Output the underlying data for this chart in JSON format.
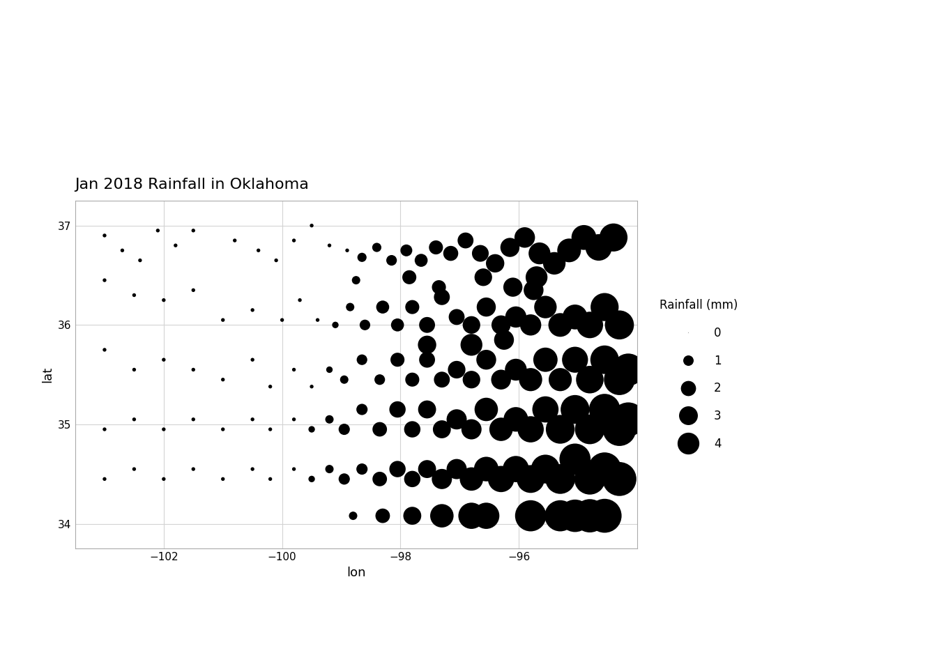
{
  "title": "Jan 2018 Rainfall in Oklahoma",
  "xlabel": "lon",
  "ylabel": "lat",
  "xlim": [
    -103.5,
    -94.0
  ],
  "ylim": [
    33.75,
    37.25
  ],
  "xticks": [
    -102,
    -100,
    -98,
    -96
  ],
  "yticks": [
    34,
    35,
    36,
    37
  ],
  "background_color": "#ffffff",
  "panel_color": "#ffffff",
  "grid_color": "#d3d3d3",
  "point_color": "#000000",
  "legend_title": "Rainfall (mm)",
  "legend_values": [
    0,
    1,
    2,
    3,
    4
  ],
  "title_fontsize": 16,
  "axis_label_fontsize": 13,
  "tick_fontsize": 11,
  "legend_fontsize": 12,
  "size_scale": 300,
  "min_size": 3,
  "stations": [
    {
      "lon": -103.0,
      "lat": 36.9,
      "rain": 0.05
    },
    {
      "lon": -102.7,
      "lat": 36.75,
      "rain": 0.05
    },
    {
      "lon": -102.4,
      "lat": 36.65,
      "rain": 0.05
    },
    {
      "lon": -102.1,
      "lat": 36.95,
      "rain": 0.05
    },
    {
      "lon": -101.8,
      "lat": 36.8,
      "rain": 0.05
    },
    {
      "lon": -101.5,
      "lat": 36.95,
      "rain": 0.05
    },
    {
      "lon": -100.8,
      "lat": 36.85,
      "rain": 0.05
    },
    {
      "lon": -100.4,
      "lat": 36.75,
      "rain": 0.05
    },
    {
      "lon": -100.1,
      "lat": 36.65,
      "rain": 0.05
    },
    {
      "lon": -99.8,
      "lat": 36.85,
      "rain": 0.05
    },
    {
      "lon": -99.5,
      "lat": 37.0,
      "rain": 0.05
    },
    {
      "lon": -99.2,
      "lat": 36.8,
      "rain": 0.05
    },
    {
      "lon": -98.9,
      "lat": 36.75,
      "rain": 0.05
    },
    {
      "lon": -98.65,
      "lat": 36.68,
      "rain": 0.3
    },
    {
      "lon": -98.4,
      "lat": 36.78,
      "rain": 0.3
    },
    {
      "lon": -98.15,
      "lat": 36.65,
      "rain": 0.4
    },
    {
      "lon": -97.9,
      "lat": 36.75,
      "rain": 0.5
    },
    {
      "lon": -97.65,
      "lat": 36.65,
      "rain": 0.6
    },
    {
      "lon": -97.4,
      "lat": 36.78,
      "rain": 0.7
    },
    {
      "lon": -97.15,
      "lat": 36.72,
      "rain": 0.8
    },
    {
      "lon": -96.9,
      "lat": 36.85,
      "rain": 0.9
    },
    {
      "lon": -96.65,
      "lat": 36.72,
      "rain": 1.0
    },
    {
      "lon": -96.4,
      "lat": 36.62,
      "rain": 1.2
    },
    {
      "lon": -96.15,
      "lat": 36.78,
      "rain": 1.3
    },
    {
      "lon": -95.9,
      "lat": 36.88,
      "rain": 1.5
    },
    {
      "lon": -95.65,
      "lat": 36.72,
      "rain": 1.7
    },
    {
      "lon": -95.4,
      "lat": 36.62,
      "rain": 1.8
    },
    {
      "lon": -95.15,
      "lat": 36.75,
      "rain": 2.0
    },
    {
      "lon": -94.9,
      "lat": 36.88,
      "rain": 2.2
    },
    {
      "lon": -94.65,
      "lat": 36.78,
      "rain": 2.5
    },
    {
      "lon": -94.4,
      "lat": 36.88,
      "rain": 2.8
    },
    {
      "lon": -103.0,
      "lat": 36.45,
      "rain": 0.05
    },
    {
      "lon": -102.5,
      "lat": 36.3,
      "rain": 0.05
    },
    {
      "lon": -102.0,
      "lat": 36.25,
      "rain": 0.05
    },
    {
      "lon": -101.5,
      "lat": 36.35,
      "rain": 0.05
    },
    {
      "lon": -101.0,
      "lat": 36.05,
      "rain": 0.05
    },
    {
      "lon": -100.5,
      "lat": 36.15,
      "rain": 0.05
    },
    {
      "lon": -100.0,
      "lat": 36.05,
      "rain": 0.05
    },
    {
      "lon": -99.7,
      "lat": 36.25,
      "rain": 0.05
    },
    {
      "lon": -99.4,
      "lat": 36.05,
      "rain": 0.05
    },
    {
      "lon": -99.1,
      "lat": 36.0,
      "rain": 0.15
    },
    {
      "lon": -98.85,
      "lat": 36.18,
      "rain": 0.25
    },
    {
      "lon": -98.6,
      "lat": 36.0,
      "rain": 0.4
    },
    {
      "lon": -98.3,
      "lat": 36.18,
      "rain": 0.6
    },
    {
      "lon": -98.05,
      "lat": 36.0,
      "rain": 0.6
    },
    {
      "lon": -97.8,
      "lat": 36.18,
      "rain": 0.7
    },
    {
      "lon": -97.55,
      "lat": 36.0,
      "rain": 0.9
    },
    {
      "lon": -97.3,
      "lat": 36.28,
      "rain": 0.9
    },
    {
      "lon": -97.05,
      "lat": 36.08,
      "rain": 0.9
    },
    {
      "lon": -96.8,
      "lat": 36.0,
      "rain": 1.1
    },
    {
      "lon": -96.55,
      "lat": 36.18,
      "rain": 1.3
    },
    {
      "lon": -96.3,
      "lat": 36.0,
      "rain": 1.3
    },
    {
      "lon": -96.05,
      "lat": 36.08,
      "rain": 1.6
    },
    {
      "lon": -95.8,
      "lat": 36.0,
      "rain": 1.6
    },
    {
      "lon": -95.55,
      "lat": 36.18,
      "rain": 1.8
    },
    {
      "lon": -95.3,
      "lat": 36.0,
      "rain": 2.0
    },
    {
      "lon": -95.05,
      "lat": 36.08,
      "rain": 2.2
    },
    {
      "lon": -94.8,
      "lat": 36.0,
      "rain": 2.5
    },
    {
      "lon": -94.55,
      "lat": 36.18,
      "rain": 2.8
    },
    {
      "lon": -94.3,
      "lat": 36.0,
      "rain": 3.0
    },
    {
      "lon": -103.0,
      "lat": 35.75,
      "rain": 0.05
    },
    {
      "lon": -102.5,
      "lat": 35.55,
      "rain": 0.05
    },
    {
      "lon": -102.0,
      "lat": 35.65,
      "rain": 0.05
    },
    {
      "lon": -101.5,
      "lat": 35.55,
      "rain": 0.05
    },
    {
      "lon": -101.0,
      "lat": 35.45,
      "rain": 0.05
    },
    {
      "lon": -100.5,
      "lat": 35.65,
      "rain": 0.05
    },
    {
      "lon": -100.2,
      "lat": 35.38,
      "rain": 0.05
    },
    {
      "lon": -99.8,
      "lat": 35.55,
      "rain": 0.05
    },
    {
      "lon": -99.5,
      "lat": 35.38,
      "rain": 0.05
    },
    {
      "lon": -99.2,
      "lat": 35.55,
      "rain": 0.15
    },
    {
      "lon": -98.95,
      "lat": 35.45,
      "rain": 0.25
    },
    {
      "lon": -98.65,
      "lat": 35.65,
      "rain": 0.4
    },
    {
      "lon": -98.35,
      "lat": 35.45,
      "rain": 0.4
    },
    {
      "lon": -98.05,
      "lat": 35.65,
      "rain": 0.7
    },
    {
      "lon": -97.8,
      "lat": 35.45,
      "rain": 0.7
    },
    {
      "lon": -97.55,
      "lat": 35.65,
      "rain": 0.9
    },
    {
      "lon": -97.3,
      "lat": 35.45,
      "rain": 0.9
    },
    {
      "lon": -97.05,
      "lat": 35.55,
      "rain": 1.1
    },
    {
      "lon": -96.8,
      "lat": 35.45,
      "rain": 1.1
    },
    {
      "lon": -96.55,
      "lat": 35.65,
      "rain": 1.4
    },
    {
      "lon": -96.3,
      "lat": 35.45,
      "rain": 1.4
    },
    {
      "lon": -96.05,
      "lat": 35.55,
      "rain": 1.7
    },
    {
      "lon": -95.8,
      "lat": 35.45,
      "rain": 1.9
    },
    {
      "lon": -95.55,
      "lat": 35.65,
      "rain": 2.1
    },
    {
      "lon": -95.3,
      "lat": 35.45,
      "rain": 1.9
    },
    {
      "lon": -95.05,
      "lat": 35.65,
      "rain": 2.4
    },
    {
      "lon": -94.8,
      "lat": 35.45,
      "rain": 2.7
    },
    {
      "lon": -94.55,
      "lat": 35.65,
      "rain": 2.9
    },
    {
      "lon": -94.3,
      "lat": 35.45,
      "rain": 3.4
    },
    {
      "lon": -94.15,
      "lat": 35.55,
      "rain": 3.7
    },
    {
      "lon": -103.0,
      "lat": 34.95,
      "rain": 0.05
    },
    {
      "lon": -102.5,
      "lat": 35.05,
      "rain": 0.05
    },
    {
      "lon": -102.0,
      "lat": 34.95,
      "rain": 0.05
    },
    {
      "lon": -101.5,
      "lat": 35.05,
      "rain": 0.05
    },
    {
      "lon": -101.0,
      "lat": 34.95,
      "rain": 0.05
    },
    {
      "lon": -100.5,
      "lat": 35.05,
      "rain": 0.05
    },
    {
      "lon": -100.2,
      "lat": 34.95,
      "rain": 0.05
    },
    {
      "lon": -99.8,
      "lat": 35.05,
      "rain": 0.05
    },
    {
      "lon": -99.5,
      "lat": 34.95,
      "rain": 0.15
    },
    {
      "lon": -99.2,
      "lat": 35.05,
      "rain": 0.25
    },
    {
      "lon": -98.95,
      "lat": 34.95,
      "rain": 0.45
    },
    {
      "lon": -98.65,
      "lat": 35.15,
      "rain": 0.45
    },
    {
      "lon": -98.35,
      "lat": 34.95,
      "rain": 0.75
    },
    {
      "lon": -98.05,
      "lat": 35.15,
      "rain": 0.95
    },
    {
      "lon": -97.8,
      "lat": 34.95,
      "rain": 0.95
    },
    {
      "lon": -97.55,
      "lat": 35.15,
      "rain": 1.15
    },
    {
      "lon": -97.3,
      "lat": 34.95,
      "rain": 1.15
    },
    {
      "lon": -97.05,
      "lat": 35.05,
      "rain": 1.45
    },
    {
      "lon": -96.8,
      "lat": 34.95,
      "rain": 1.45
    },
    {
      "lon": -96.55,
      "lat": 35.15,
      "rain": 1.95
    },
    {
      "lon": -96.3,
      "lat": 34.95,
      "rain": 1.95
    },
    {
      "lon": -96.05,
      "lat": 35.05,
      "rain": 2.15
    },
    {
      "lon": -95.8,
      "lat": 34.95,
      "rain": 2.45
    },
    {
      "lon": -95.55,
      "lat": 35.15,
      "rain": 2.45
    },
    {
      "lon": -95.3,
      "lat": 34.95,
      "rain": 2.95
    },
    {
      "lon": -95.05,
      "lat": 35.15,
      "rain": 2.95
    },
    {
      "lon": -94.8,
      "lat": 34.95,
      "rain": 3.15
    },
    {
      "lon": -94.55,
      "lat": 35.15,
      "rain": 3.45
    },
    {
      "lon": -94.3,
      "lat": 34.95,
      "rain": 3.95
    },
    {
      "lon": -94.15,
      "lat": 35.05,
      "rain": 4.1
    },
    {
      "lon": -103.0,
      "lat": 34.45,
      "rain": 0.05
    },
    {
      "lon": -102.5,
      "lat": 34.55,
      "rain": 0.05
    },
    {
      "lon": -102.0,
      "lat": 34.45,
      "rain": 0.05
    },
    {
      "lon": -101.5,
      "lat": 34.55,
      "rain": 0.05
    },
    {
      "lon": -101.0,
      "lat": 34.45,
      "rain": 0.05
    },
    {
      "lon": -100.5,
      "lat": 34.55,
      "rain": 0.05
    },
    {
      "lon": -100.2,
      "lat": 34.45,
      "rain": 0.05
    },
    {
      "lon": -99.8,
      "lat": 34.55,
      "rain": 0.05
    },
    {
      "lon": -99.5,
      "lat": 34.45,
      "rain": 0.15
    },
    {
      "lon": -99.2,
      "lat": 34.55,
      "rain": 0.25
    },
    {
      "lon": -98.95,
      "lat": 34.45,
      "rain": 0.45
    },
    {
      "lon": -98.65,
      "lat": 34.55,
      "rain": 0.45
    },
    {
      "lon": -98.35,
      "lat": 34.45,
      "rain": 0.75
    },
    {
      "lon": -98.05,
      "lat": 34.55,
      "rain": 0.95
    },
    {
      "lon": -97.8,
      "lat": 34.45,
      "rain": 0.95
    },
    {
      "lon": -97.55,
      "lat": 34.55,
      "rain": 1.15
    },
    {
      "lon": -97.3,
      "lat": 34.45,
      "rain": 1.45
    },
    {
      "lon": -97.05,
      "lat": 34.55,
      "rain": 1.45
    },
    {
      "lon": -96.8,
      "lat": 34.45,
      "rain": 1.95
    },
    {
      "lon": -96.55,
      "lat": 34.55,
      "rain": 2.15
    },
    {
      "lon": -96.3,
      "lat": 34.45,
      "rain": 2.45
    },
    {
      "lon": -96.05,
      "lat": 34.55,
      "rain": 2.45
    },
    {
      "lon": -95.8,
      "lat": 34.45,
      "rain": 2.75
    },
    {
      "lon": -95.55,
      "lat": 34.55,
      "rain": 2.95
    },
    {
      "lon": -95.3,
      "lat": 34.45,
      "rain": 3.15
    },
    {
      "lon": -95.05,
      "lat": 34.65,
      "rain": 3.45
    },
    {
      "lon": -94.8,
      "lat": 34.45,
      "rain": 3.45
    },
    {
      "lon": -94.55,
      "lat": 34.55,
      "rain": 3.95
    },
    {
      "lon": -94.3,
      "lat": 34.45,
      "rain": 4.1
    },
    {
      "lon": -96.55,
      "lat": 34.08,
      "rain": 2.45
    },
    {
      "lon": -95.8,
      "lat": 34.08,
      "rain": 3.45
    },
    {
      "lon": -96.8,
      "lat": 34.08,
      "rain": 2.45
    },
    {
      "lon": -97.3,
      "lat": 34.08,
      "rain": 1.95
    },
    {
      "lon": -97.8,
      "lat": 34.08,
      "rain": 1.15
    },
    {
      "lon": -98.3,
      "lat": 34.08,
      "rain": 0.75
    },
    {
      "lon": -95.3,
      "lat": 34.08,
      "rain": 3.45
    },
    {
      "lon": -95.05,
      "lat": 34.08,
      "rain": 3.75
    },
    {
      "lon": -94.8,
      "lat": 34.08,
      "rain": 3.95
    },
    {
      "lon": -94.55,
      "lat": 34.08,
      "rain": 4.1
    },
    {
      "lon": -98.8,
      "lat": 34.08,
      "rain": 0.25
    },
    {
      "lon": -97.55,
      "lat": 35.8,
      "rain": 1.2
    },
    {
      "lon": -96.8,
      "lat": 35.8,
      "rain": 1.7
    },
    {
      "lon": -96.25,
      "lat": 35.85,
      "rain": 1.4
    },
    {
      "lon": -95.75,
      "lat": 36.35,
      "rain": 1.4
    },
    {
      "lon": -96.1,
      "lat": 36.38,
      "rain": 1.3
    },
    {
      "lon": -97.35,
      "lat": 36.38,
      "rain": 0.7
    },
    {
      "lon": -98.75,
      "lat": 36.45,
      "rain": 0.25
    },
    {
      "lon": -97.85,
      "lat": 36.48,
      "rain": 0.7
    },
    {
      "lon": -96.6,
      "lat": 36.48,
      "rain": 1.1
    },
    {
      "lon": -95.7,
      "lat": 36.48,
      "rain": 1.7
    }
  ]
}
